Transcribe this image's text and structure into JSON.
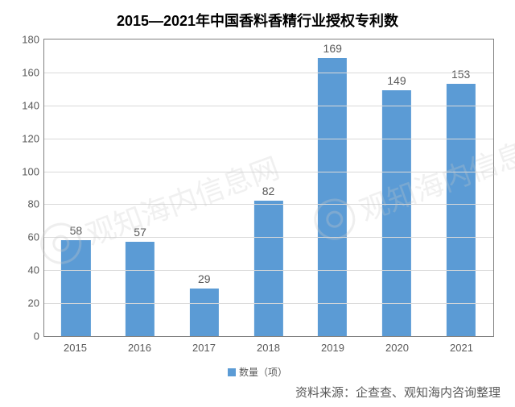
{
  "chart": {
    "type": "bar",
    "title": "2015—2021年中国香料香精行业授权专利数",
    "title_fontsize": 18,
    "title_color": "#000000",
    "categories": [
      "2015",
      "2016",
      "2017",
      "2018",
      "2019",
      "2020",
      "2021"
    ],
    "values": [
      58,
      57,
      29,
      82,
      169,
      149,
      153
    ],
    "bar_color": "#5b9bd5",
    "bar_width_pct": 46,
    "ylim": [
      0,
      180
    ],
    "ytick_step": 20,
    "yticks": [
      0,
      20,
      40,
      60,
      80,
      100,
      120,
      140,
      160,
      180
    ],
    "grid_color": "#d9d9d9",
    "axis_color": "#808080",
    "tick_fontsize": 13,
    "tick_color": "#595959",
    "value_label_fontsize": 14,
    "value_label_color": "#595959",
    "background_color": "#ffffff",
    "legend_label": "数量（项）",
    "legend_swatch_color": "#5b9bd5",
    "legend_fontsize": 12,
    "source_text": "资料来源：企查查、观知海内咨询整理",
    "source_fontsize": 15,
    "watermark_text": "观知海内信息网",
    "watermark_sub": "WWW.HUAON.COM"
  }
}
